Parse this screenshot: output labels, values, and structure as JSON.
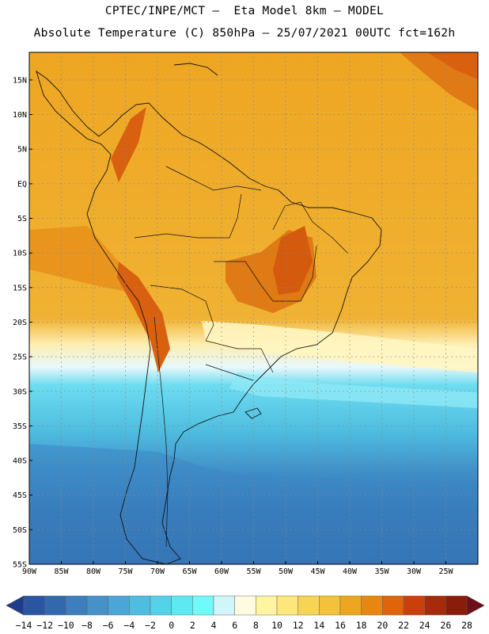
{
  "header": {
    "line1": "CPTEC/INPE/MCT —  Eta Model 8km — MODEL",
    "line2": "Absolute Temperature (C) 850hPa — 25/07/2021 00UTC fct=162h"
  },
  "axes": {
    "lat_labels": [
      "15N",
      "10N",
      "5N",
      "EQ",
      "5S",
      "10S",
      "15S",
      "20S",
      "25S",
      "30S",
      "35S",
      "40S",
      "45S",
      "50S",
      "55S"
    ],
    "lon_labels": [
      "90W",
      "85W",
      "80W",
      "75W",
      "70W",
      "65W",
      "60W",
      "55W",
      "50W",
      "45W",
      "40W",
      "35W",
      "30W",
      "25W"
    ]
  },
  "colorbar": {
    "labels": [
      "-14",
      "-12",
      "-10",
      "-8",
      "-6",
      "-4",
      "-2",
      "0",
      "2",
      "4",
      "6",
      "8",
      "10",
      "12",
      "14",
      "16",
      "18",
      "20",
      "22",
      "24",
      "26",
      "28"
    ],
    "colors": [
      "#1f3c8c",
      "#2a55a0",
      "#3468ae",
      "#3d7ebf",
      "#4591c8",
      "#4aa6d6",
      "#4fbde0",
      "#55d2ea",
      "#5ee8f2",
      "#70fafa",
      "#d0f6fb",
      "#fffbe0",
      "#fff5a0",
      "#fde77a",
      "#f8d454",
      "#f4c13c",
      "#eea622",
      "#e88612",
      "#df640b",
      "#c9400b",
      "#a62b0a",
      "#8a1c0c",
      "#6e0e16"
    ]
  },
  "map_colors": {
    "ocean_deep": "#2f6fb0",
    "ocean_mid": "#3d8ac6",
    "ocean_cold": "#4ea9dc",
    "ocean_cyan": "#5fd6ee",
    "ocean_light": "#8fe8f5",
    "ocean_pale": "#dff7fb",
    "warm_yellow": "#fff2a8",
    "warm_orange": "#f3b43a",
    "warm_main": "#eea622",
    "hot": "#e07a14",
    "hotter": "#d9600e",
    "andes_cold": "#c8c0a0"
  }
}
